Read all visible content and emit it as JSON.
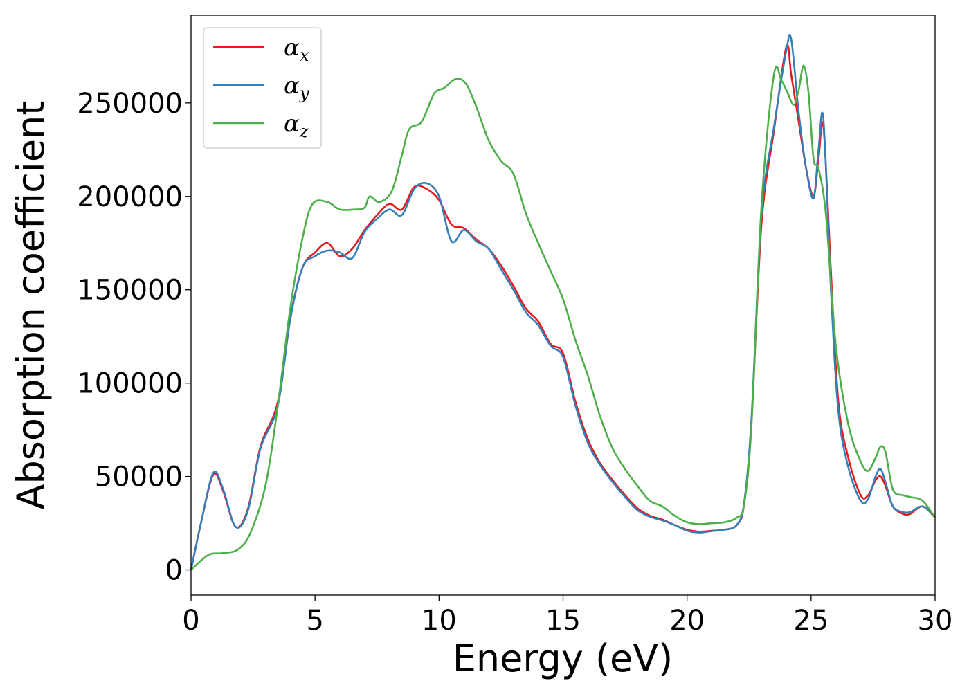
{
  "chart_data": {
    "type": "line",
    "xlabel": "Energy (eV)",
    "ylabel": "Absorption coefficient",
    "xlim": [
      0,
      30
    ],
    "ylim": [
      -13500,
      297000
    ],
    "xticks": [
      0,
      5,
      10,
      15,
      20,
      25,
      30
    ],
    "yticks": [
      0,
      50000,
      100000,
      150000,
      200000,
      250000
    ],
    "grid": false,
    "legend_position": "top-left",
    "series": [
      {
        "name": "α_x",
        "base": "α",
        "sub": "x",
        "color": "#e41a1c",
        "x": [
          0,
          0.4,
          0.9,
          1.3,
          1.8,
          2.3,
          2.8,
          3.5,
          4.0,
          4.5,
          5.0,
          5.5,
          6.0,
          6.5,
          7.0,
          7.5,
          8.0,
          8.5,
          9.0,
          9.5,
          10.0,
          10.5,
          11.0,
          11.5,
          12.0,
          12.5,
          13.0,
          13.5,
          14.0,
          14.5,
          15.0,
          15.5,
          16.0,
          16.5,
          17.0,
          17.5,
          18.0,
          18.5,
          19.0,
          19.5,
          20.0,
          20.5,
          21.0,
          21.5,
          22.0,
          22.3,
          22.6,
          23.0,
          23.5,
          24.0,
          24.2,
          24.5,
          24.8,
          25.1,
          25.3,
          25.5,
          25.8,
          26.1,
          26.5,
          27.0,
          27.3,
          27.6,
          27.8,
          28.0,
          28.3,
          28.7,
          29.0,
          29.5,
          30.0
        ],
        "y": [
          0,
          25000,
          51000,
          42000,
          23000,
          33000,
          66000,
          90000,
          135000,
          162000,
          170000,
          175000,
          168000,
          172000,
          182000,
          190000,
          196000,
          193000,
          205000,
          204000,
          198000,
          185000,
          183000,
          177000,
          172000,
          163000,
          152000,
          140000,
          133000,
          121000,
          116000,
          90000,
          70000,
          57000,
          48000,
          40000,
          33000,
          29000,
          27000,
          24000,
          21500,
          20500,
          21000,
          21500,
          24000,
          35000,
          80000,
          185000,
          235000,
          280000,
          265000,
          240000,
          215000,
          200000,
          220000,
          237000,
          160000,
          90000,
          60000,
          40000,
          40000,
          48000,
          50000,
          45000,
          34000,
          30000,
          30000,
          34000,
          28000
        ]
      },
      {
        "name": "α_y",
        "base": "α",
        "sub": "y",
        "color": "#377eb8",
        "x": [
          0,
          0.4,
          0.9,
          1.3,
          1.8,
          2.3,
          2.8,
          3.5,
          4.0,
          4.5,
          5.0,
          5.5,
          6.0,
          6.5,
          7.0,
          7.5,
          8.0,
          8.5,
          9.0,
          9.5,
          10.0,
          10.5,
          11.0,
          11.5,
          12.0,
          12.5,
          13.0,
          13.5,
          14.0,
          14.5,
          15.0,
          15.5,
          16.0,
          16.5,
          17.0,
          17.5,
          18.0,
          18.5,
          19.0,
          19.5,
          20.0,
          20.5,
          21.0,
          21.5,
          22.0,
          22.3,
          22.6,
          23.0,
          23.5,
          24.0,
          24.2,
          24.5,
          24.8,
          25.1,
          25.3,
          25.5,
          25.8,
          26.1,
          26.5,
          27.0,
          27.3,
          27.6,
          27.8,
          28.0,
          28.3,
          28.7,
          29.0,
          29.5,
          30.0
        ],
        "y": [
          0,
          25000,
          52000,
          43000,
          23000,
          32000,
          65000,
          88000,
          134000,
          162000,
          168000,
          171000,
          170000,
          167000,
          181000,
          188000,
          193000,
          190000,
          204000,
          207000,
          200000,
          176000,
          182000,
          176000,
          172000,
          161000,
          150000,
          138000,
          131000,
          120000,
          114000,
          88000,
          68000,
          56000,
          47000,
          39000,
          32000,
          28500,
          26500,
          24000,
          21000,
          20000,
          20800,
          21500,
          24000,
          36000,
          82000,
          190000,
          237000,
          278000,
          284000,
          245000,
          215000,
          199000,
          225000,
          241000,
          150000,
          85000,
          55000,
          37000,
          38000,
          50000,
          54000,
          47000,
          34000,
          31000,
          31000,
          34000,
          28500
        ]
      },
      {
        "name": "α_z",
        "base": "α",
        "sub": "z",
        "color": "#4daf4a",
        "x": [
          0,
          0.7,
          1.3,
          1.9,
          2.4,
          3.0,
          3.5,
          4.0,
          4.5,
          4.9,
          5.5,
          6.0,
          6.6,
          7.0,
          7.2,
          7.6,
          8.1,
          8.5,
          8.8,
          9.3,
          9.8,
          10.2,
          10.7,
          11.1,
          11.5,
          12.0,
          12.5,
          13.0,
          13.5,
          14.0,
          14.5,
          15.0,
          15.5,
          16.0,
          16.5,
          17.0,
          17.5,
          18.0,
          18.5,
          19.0,
          19.5,
          20.0,
          20.5,
          21.0,
          21.5,
          22.0,
          22.3,
          22.6,
          23.0,
          23.5,
          23.8,
          24.0,
          24.3,
          24.5,
          24.7,
          24.9,
          25.1,
          25.3,
          25.6,
          26.0,
          26.5,
          27.0,
          27.3,
          27.6,
          27.8,
          28.0,
          28.3,
          28.7,
          29.0,
          29.5,
          30.0
        ],
        "y": [
          0,
          8000,
          9000,
          11000,
          20000,
          45000,
          88000,
          140000,
          178000,
          196000,
          197000,
          193000,
          193000,
          194000,
          200000,
          197000,
          203000,
          222000,
          236000,
          240000,
          255000,
          258000,
          263000,
          260000,
          248000,
          230000,
          219000,
          212000,
          191000,
          175000,
          160000,
          145000,
          123000,
          104000,
          82000,
          65000,
          54000,
          45000,
          37000,
          34000,
          29000,
          25500,
          24500,
          25000,
          25500,
          28000,
          35000,
          78000,
          195000,
          265000,
          262000,
          257000,
          249000,
          257000,
          270000,
          255000,
          220000,
          215000,
          190000,
          120000,
          78000,
          58000,
          53000,
          60000,
          66000,
          63000,
          43000,
          40000,
          39000,
          37000,
          28000
        ]
      }
    ]
  }
}
